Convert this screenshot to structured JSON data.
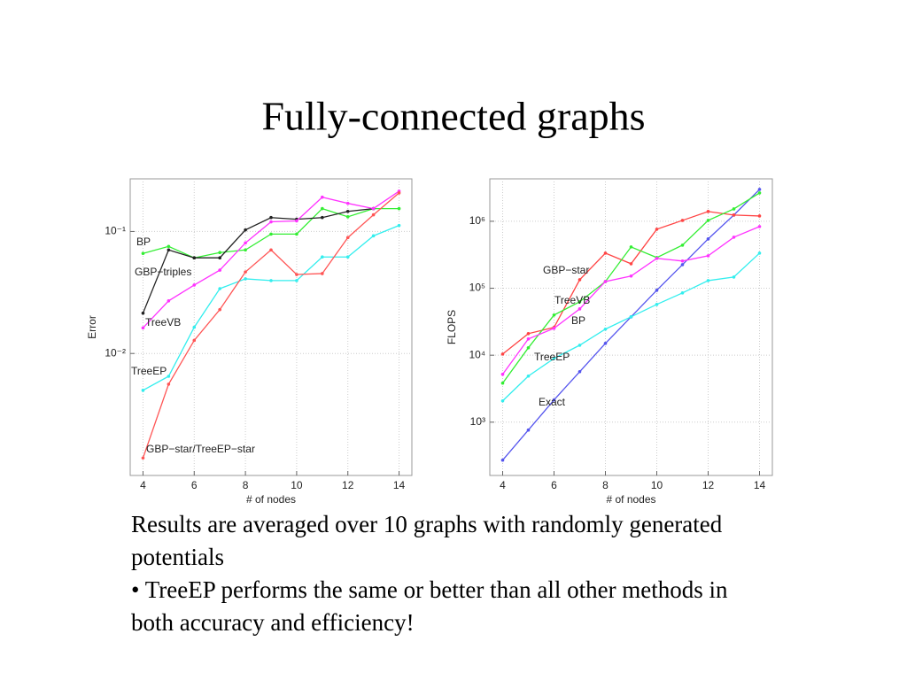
{
  "title": "Fully-connected graphs",
  "text": [
    "Results are averaged over 10 graphs with randomly generated potentials",
    "• TreeEP performs the same or better than all other methods in both accuracy and efficiency!"
  ],
  "chart_data": [
    {
      "type": "line",
      "log_y": true,
      "grid": true,
      "xlabel": "# of nodes",
      "ylabel": "Error",
      "x": [
        4,
        5,
        6,
        7,
        8,
        9,
        10,
        11,
        12,
        13,
        14
      ],
      "xlim": [
        3.5,
        14.5
      ],
      "xticks": [
        4,
        6,
        8,
        10,
        12,
        14
      ],
      "ylim": [
        0.001,
        0.27
      ],
      "yticks": [
        {
          "value": 0.01,
          "label": "10⁻²"
        },
        {
          "value": 0.1,
          "label": "10⁻¹"
        }
      ],
      "series": [
        {
          "name": "BP",
          "color": "#33ee33",
          "values": [
            0.0661,
            0.0755,
            0.0608,
            0.0672,
            0.0706,
            0.0952,
            0.0952,
            0.154,
            0.132,
            0.154,
            0.154
          ]
        },
        {
          "name": "GBP−triples",
          "color": "#222222",
          "values": [
            0.0214,
            0.0706,
            0.0608,
            0.0608,
            0.103,
            0.13,
            0.126,
            0.13,
            0.146,
            0.154,
            null
          ]
        },
        {
          "name": "TreeVB",
          "color": "#ff33ff",
          "values": [
            0.0162,
            0.027,
            0.0364,
            0.0482,
            0.0806,
            0.12,
            0.122,
            0.191,
            0.17,
            0.154,
            0.214
          ]
        },
        {
          "name": "TreeEP",
          "color": "#33eeee",
          "values": [
            0.00499,
            0.0065,
            0.0164,
            0.034,
            0.0409,
            0.0396,
            0.0396,
            0.0618,
            0.0618,
            0.0921,
            0.112
          ]
        },
        {
          "name": "GBP−star/TreeEP−star",
          "color": "#ff5555",
          "values": [
            0.00139,
            0.0056,
            0.0128,
            0.0229,
            0.0466,
            0.0706,
            0.0444,
            0.0452,
            0.0891,
            0.137,
            0.207
          ]
        }
      ]
    },
    {
      "type": "line",
      "log_y": true,
      "grid": true,
      "xlabel": "# of nodes",
      "ylabel": "FLOPS",
      "x": [
        4,
        5,
        6,
        7,
        8,
        9,
        10,
        11,
        12,
        13,
        14
      ],
      "xlim": [
        3.5,
        14.5
      ],
      "xticks": [
        4,
        6,
        8,
        10,
        12,
        14
      ],
      "ylim": [
        160,
        4300000
      ],
      "yticks": [
        {
          "value": 1000,
          "label": "10³"
        },
        {
          "value": 10000,
          "label": "10⁴"
        },
        {
          "value": 100000,
          "label": "10⁵"
        },
        {
          "value": 1000000,
          "label": "10⁶"
        }
      ],
      "series": [
        {
          "name": "Exact",
          "color": "#5555ee",
          "values": [
            271,
            762,
            2150,
            5680,
            15000,
            37400,
            93300,
            225000,
            545000,
            1240000,
            2990000
          ]
        },
        {
          "name": "GBP−star",
          "color": "#ff4444",
          "values": [
            10400,
            21000,
            26000,
            134000,
            334000,
            232000,
            760000,
            1030000,
            1400000,
            1240000,
            1200000
          ]
        },
        {
          "name": "BP",
          "color": "#33ee33",
          "values": [
            3830,
            12900,
            39800,
            62800,
            126000,
            414000,
            287000,
            440000,
            1030000,
            1530000,
            2650000
          ]
        },
        {
          "name": "TreeVB",
          "color": "#ff33ff",
          "values": [
            5190,
            17500,
            25200,
            49200,
            126000,
            152000,
            279000,
            255000,
            305000,
            578000,
            833000
          ]
        },
        {
          "name": "TreeEP",
          "color": "#33eeee",
          "values": [
            2080,
            4880,
            8960,
            14100,
            24500,
            37400,
            57300,
            85100,
            130000,
            147000,
            334000
          ]
        }
      ]
    }
  ]
}
